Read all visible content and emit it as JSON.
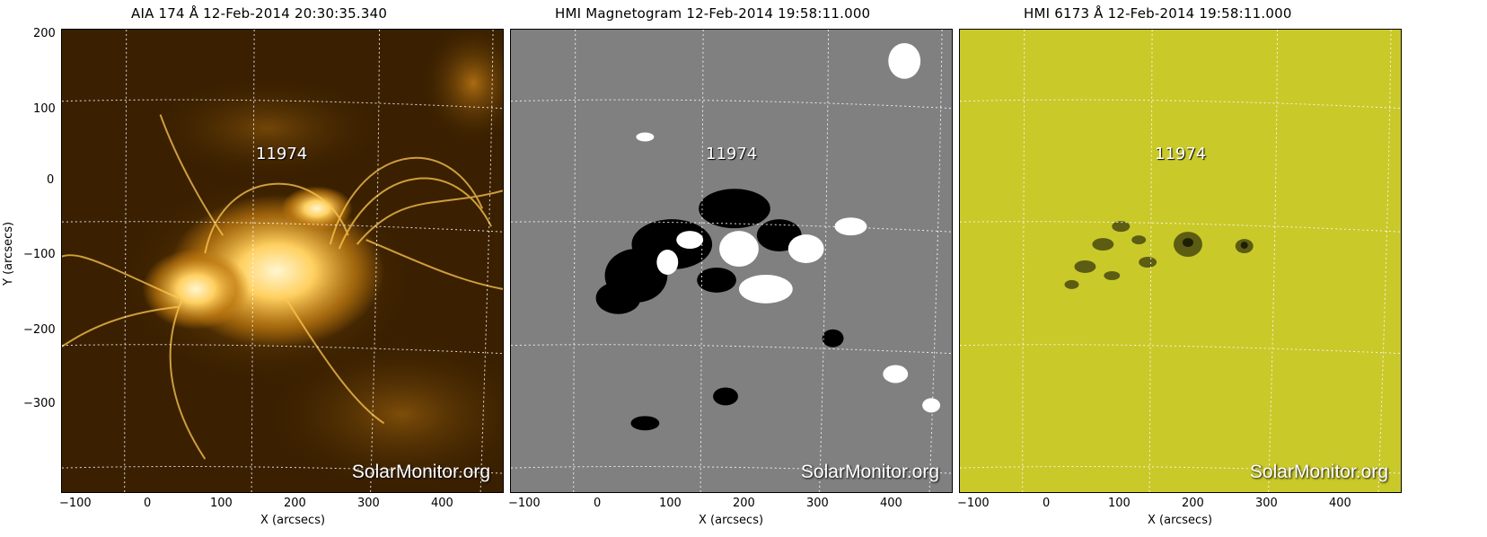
{
  "panels": [
    {
      "title": "AIA 174 Å 12-Feb-2014 20:30:35.340"
    },
    {
      "title": "HMI Magnetogram 12-Feb-2014 19:58:11.000"
    },
    {
      "title": "HMI 6173 Å 12-Feb-2014 19:58:11.000"
    }
  ],
  "region_label": "11974",
  "watermark": "SolarMonitor.org",
  "x_axis": {
    "label": "X (arcsecs)",
    "ticks": [
      "−100",
      "0",
      "100",
      "200",
      "300",
      "400"
    ]
  },
  "y_axis": {
    "label": "Y (arcsecs)",
    "ticks": [
      "200",
      "100",
      "0",
      "−100",
      "−200",
      "−300"
    ]
  },
  "colors": {
    "aia_bg": "#3a2000",
    "aia_bright": "#ffc850",
    "magnetogram_bg": "#808080",
    "continuum_bg": "#c9c92a",
    "grid": "#ffffff"
  }
}
